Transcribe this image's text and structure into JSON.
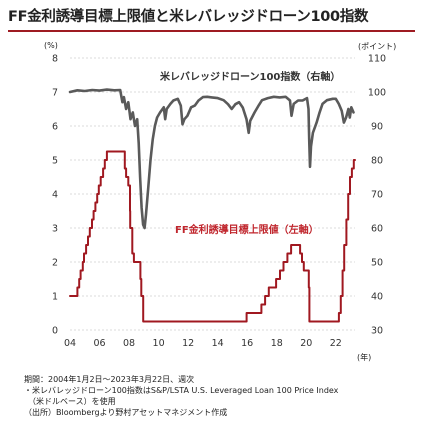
{
  "title": "FF金利誘導目標上限値と米レバレッジドローン100指数",
  "left_unit": "(%)",
  "right_unit": "(ポイント)",
  "x_unit": "(年)",
  "notes": [
    "期間：2004年1月2日～2023年3月22日、週次",
    "・米レバレッジドローン100指数はS&P/LSTA U.S. Leveraged Loan 100 Price Index",
    "（米ドルベース）を使用",
    "（出所）Bloombergより野村アセットマネジメント作成"
  ],
  "chart_data": {
    "type": "line",
    "x_ticks": [
      "04",
      "06",
      "08",
      "10",
      "12",
      "14",
      "16",
      "18",
      "20",
      "22"
    ],
    "xlim": [
      2004,
      2023.3
    ],
    "left_axis": {
      "ticks": [
        "0",
        "1",
        "2",
        "3",
        "4",
        "5",
        "6",
        "7",
        "8"
      ],
      "ylim": [
        0,
        8
      ]
    },
    "right_axis": {
      "ticks": [
        "30",
        "40",
        "50",
        "60",
        "70",
        "80",
        "90",
        "100",
        "110"
      ],
      "ylim": [
        30,
        110
      ]
    },
    "series": [
      {
        "name": "米レバレッジドローン100指数（右軸）",
        "axis": "right",
        "color": "#5a5a5a",
        "points": [
          [
            2004.0,
            100
          ],
          [
            2004.5,
            100.5
          ],
          [
            2005.0,
            100.3
          ],
          [
            2005.5,
            100.6
          ],
          [
            2006.0,
            100.4
          ],
          [
            2006.5,
            100.7
          ],
          [
            2007.0,
            100.5
          ],
          [
            2007.4,
            100.6
          ],
          [
            2007.55,
            97
          ],
          [
            2007.65,
            98.5
          ],
          [
            2007.8,
            95
          ],
          [
            2007.95,
            97
          ],
          [
            2008.1,
            92
          ],
          [
            2008.25,
            94
          ],
          [
            2008.4,
            90
          ],
          [
            2008.55,
            92
          ],
          [
            2008.65,
            85
          ],
          [
            2008.75,
            75
          ],
          [
            2008.85,
            66
          ],
          [
            2008.95,
            61
          ],
          [
            2009.05,
            60
          ],
          [
            2009.15,
            64
          ],
          [
            2009.3,
            72
          ],
          [
            2009.45,
            80
          ],
          [
            2009.6,
            86
          ],
          [
            2009.75,
            90
          ],
          [
            2009.9,
            92.5
          ],
          [
            2010.1,
            94
          ],
          [
            2010.35,
            95.5
          ],
          [
            2010.45,
            92
          ],
          [
            2010.55,
            95
          ],
          [
            2010.8,
            96.5
          ],
          [
            2011.0,
            97.5
          ],
          [
            2011.3,
            98
          ],
          [
            2011.5,
            96
          ],
          [
            2011.62,
            90.5
          ],
          [
            2011.75,
            92
          ],
          [
            2011.95,
            93
          ],
          [
            2012.2,
            95.5
          ],
          [
            2012.45,
            96
          ],
          [
            2012.7,
            97.5
          ],
          [
            2013.0,
            98.5
          ],
          [
            2013.3,
            98.6
          ],
          [
            2013.6,
            98.4
          ],
          [
            2014.0,
            98.2
          ],
          [
            2014.4,
            97.6
          ],
          [
            2014.7,
            96.4
          ],
          [
            2014.95,
            95
          ],
          [
            2015.2,
            96.4
          ],
          [
            2015.45,
            97
          ],
          [
            2015.7,
            95.4
          ],
          [
            2015.95,
            92
          ],
          [
            2016.1,
            88
          ],
          [
            2016.2,
            91.5
          ],
          [
            2016.5,
            94
          ],
          [
            2016.8,
            96.2
          ],
          [
            2017.0,
            97.6
          ],
          [
            2017.4,
            98.2
          ],
          [
            2017.8,
            98.6
          ],
          [
            2018.2,
            98.4
          ],
          [
            2018.6,
            98.6
          ],
          [
            2018.9,
            97.5
          ],
          [
            2019.0,
            93
          ],
          [
            2019.15,
            96.5
          ],
          [
            2019.45,
            97.5
          ],
          [
            2019.75,
            97.5
          ],
          [
            2020.05,
            98.2
          ],
          [
            2020.15,
            95
          ],
          [
            2020.2,
            86
          ],
          [
            2020.25,
            78
          ],
          [
            2020.32,
            84
          ],
          [
            2020.45,
            88
          ],
          [
            2020.7,
            91
          ],
          [
            2020.9,
            94
          ],
          [
            2021.1,
            96.5
          ],
          [
            2021.4,
            97.6
          ],
          [
            2021.8,
            98
          ],
          [
            2022.0,
            98
          ],
          [
            2022.2,
            96.5
          ],
          [
            2022.4,
            94.5
          ],
          [
            2022.55,
            91
          ],
          [
            2022.7,
            92.5
          ],
          [
            2022.85,
            95
          ],
          [
            2022.95,
            92.5
          ],
          [
            2023.05,
            95.5
          ],
          [
            2023.2,
            94
          ]
        ]
      },
      {
        "name": "FF金利誘導目標上限値（左軸）",
        "axis": "left",
        "color": "#a01820",
        "points": [
          [
            2004.0,
            1.0
          ],
          [
            2004.5,
            1.0
          ],
          [
            2004.5,
            1.25
          ],
          [
            2004.62,
            1.25
          ],
          [
            2004.62,
            1.5
          ],
          [
            2004.72,
            1.5
          ],
          [
            2004.72,
            1.75
          ],
          [
            2004.87,
            1.75
          ],
          [
            2004.87,
            2.0
          ],
          [
            2004.95,
            2.0
          ],
          [
            2004.95,
            2.25
          ],
          [
            2005.09,
            2.25
          ],
          [
            2005.09,
            2.5
          ],
          [
            2005.22,
            2.5
          ],
          [
            2005.22,
            2.75
          ],
          [
            2005.34,
            2.75
          ],
          [
            2005.34,
            3.0
          ],
          [
            2005.49,
            3.0
          ],
          [
            2005.49,
            3.25
          ],
          [
            2005.6,
            3.25
          ],
          [
            2005.6,
            3.5
          ],
          [
            2005.72,
            3.5
          ],
          [
            2005.72,
            3.75
          ],
          [
            2005.84,
            3.75
          ],
          [
            2005.84,
            4.0
          ],
          [
            2005.95,
            4.0
          ],
          [
            2005.95,
            4.25
          ],
          [
            2006.08,
            4.25
          ],
          [
            2006.08,
            4.5
          ],
          [
            2006.24,
            4.5
          ],
          [
            2006.24,
            4.75
          ],
          [
            2006.36,
            4.75
          ],
          [
            2006.36,
            5.0
          ],
          [
            2006.5,
            5.0
          ],
          [
            2006.5,
            5.25
          ],
          [
            2007.71,
            5.25
          ],
          [
            2007.71,
            4.75
          ],
          [
            2007.8,
            4.75
          ],
          [
            2007.8,
            4.5
          ],
          [
            2007.95,
            4.5
          ],
          [
            2007.95,
            4.25
          ],
          [
            2008.06,
            4.25
          ],
          [
            2008.06,
            3.5
          ],
          [
            2008.08,
            3.5
          ],
          [
            2008.08,
            3.0
          ],
          [
            2008.22,
            3.0
          ],
          [
            2008.22,
            2.25
          ],
          [
            2008.33,
            2.25
          ],
          [
            2008.33,
            2.0
          ],
          [
            2008.77,
            2.0
          ],
          [
            2008.77,
            1.5
          ],
          [
            2008.83,
            1.5
          ],
          [
            2008.83,
            1.0
          ],
          [
            2008.96,
            1.0
          ],
          [
            2008.96,
            0.25
          ],
          [
            2015.96,
            0.25
          ],
          [
            2015.96,
            0.5
          ],
          [
            2016.96,
            0.5
          ],
          [
            2016.96,
            0.75
          ],
          [
            2017.21,
            0.75
          ],
          [
            2017.21,
            1.0
          ],
          [
            2017.46,
            1.0
          ],
          [
            2017.46,
            1.25
          ],
          [
            2017.96,
            1.25
          ],
          [
            2017.96,
            1.5
          ],
          [
            2018.22,
            1.5
          ],
          [
            2018.22,
            1.75
          ],
          [
            2018.46,
            1.75
          ],
          [
            2018.46,
            2.0
          ],
          [
            2018.72,
            2.0
          ],
          [
            2018.72,
            2.25
          ],
          [
            2018.97,
            2.25
          ],
          [
            2018.97,
            2.5
          ],
          [
            2019.58,
            2.5
          ],
          [
            2019.58,
            2.25
          ],
          [
            2019.71,
            2.25
          ],
          [
            2019.71,
            2.0
          ],
          [
            2019.83,
            2.0
          ],
          [
            2019.83,
            1.75
          ],
          [
            2020.17,
            1.75
          ],
          [
            2020.17,
            1.25
          ],
          [
            2020.21,
            1.25
          ],
          [
            2020.21,
            0.25
          ],
          [
            2022.21,
            0.25
          ],
          [
            2022.21,
            0.5
          ],
          [
            2022.34,
            0.5
          ],
          [
            2022.34,
            1.0
          ],
          [
            2022.46,
            1.0
          ],
          [
            2022.46,
            1.75
          ],
          [
            2022.57,
            1.75
          ],
          [
            2022.57,
            2.5
          ],
          [
            2022.72,
            2.5
          ],
          [
            2022.72,
            3.25
          ],
          [
            2022.84,
            3.25
          ],
          [
            2022.84,
            4.0
          ],
          [
            2022.96,
            4.0
          ],
          [
            2022.96,
            4.5
          ],
          [
            2023.09,
            4.5
          ],
          [
            2023.09,
            4.75
          ],
          [
            2023.22,
            4.75
          ],
          [
            2023.22,
            5.0
          ],
          [
            2023.3,
            5.0
          ]
        ]
      }
    ],
    "grid": "horizontal",
    "legend": "inline labels"
  }
}
